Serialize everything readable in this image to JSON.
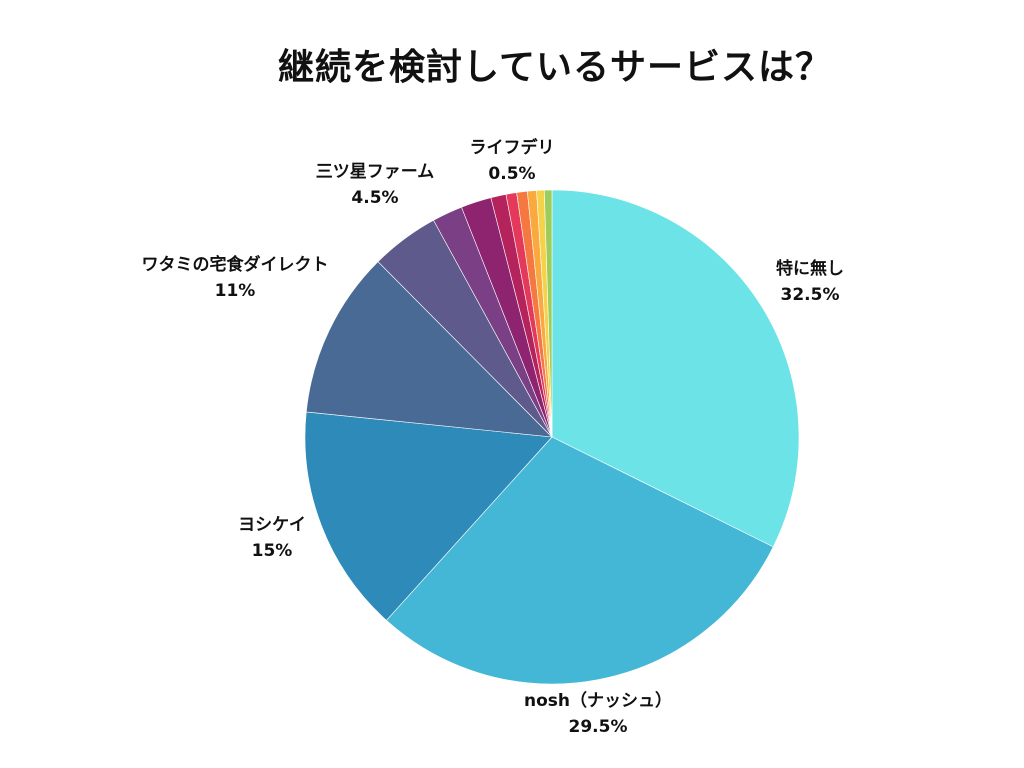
{
  "chart_data": {
    "type": "pie",
    "title": "継続を検討しているサービスは？",
    "slices": [
      {
        "label": "特に無し",
        "value": 32.5,
        "value_label": "32.5%",
        "color": "#6ce3e7"
      },
      {
        "label": "nosh（ナッシュ）",
        "value": 29.5,
        "value_label": "29.5%",
        "color": "#44b7d6"
      },
      {
        "label": "ヨシケイ",
        "value": 15,
        "value_label": "15%",
        "color": "#2e8ab8"
      },
      {
        "label": "ワタミの宅食ダイレクト",
        "value": 11,
        "value_label": "11%",
        "color": "#4a6a96"
      },
      {
        "label": "三ツ星ファーム",
        "value": 4.5,
        "value_label": "4.5%",
        "color": "#5e5a8c"
      },
      {
        "label": "",
        "value": 2,
        "value_label": "",
        "color": "#7a3f84"
      },
      {
        "label": "",
        "value": 2,
        "value_label": "",
        "color": "#8e2370"
      },
      {
        "label": "",
        "value": 1,
        "value_label": "",
        "color": "#b5235c"
      },
      {
        "label": "",
        "value": 0.7,
        "value_label": "",
        "color": "#e4395a"
      },
      {
        "label": "",
        "value": 0.7,
        "value_label": "",
        "color": "#f57840"
      },
      {
        "label": "",
        "value": 0.6,
        "value_label": "",
        "color": "#f9a93e"
      },
      {
        "label": "",
        "value": 0.5,
        "value_label": "",
        "color": "#f5d24a"
      },
      {
        "label": "ライフデリ",
        "value": 0.5,
        "value_label": "0.5%",
        "color": "#9ccc5a"
      }
    ],
    "start_angle_deg": 0,
    "direction": "clockwise"
  }
}
